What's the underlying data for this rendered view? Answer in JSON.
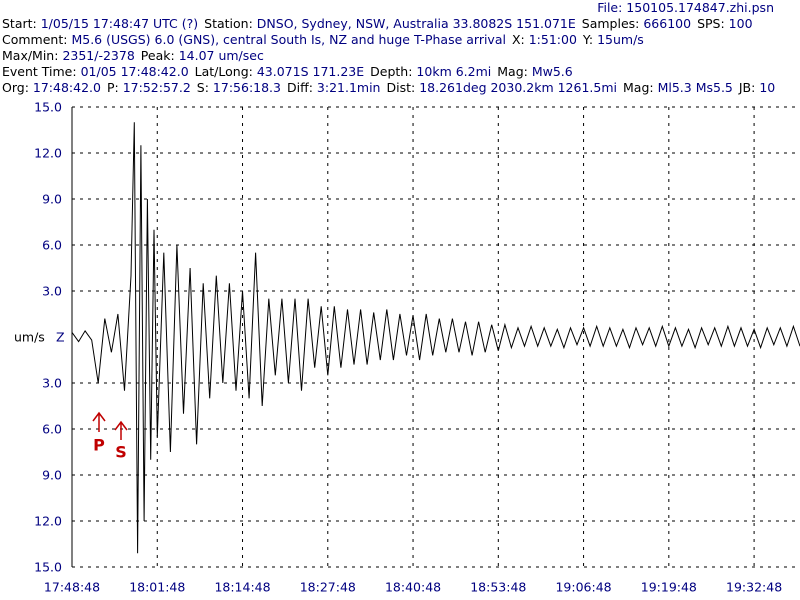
{
  "header": {
    "file": "File: 150105.174847.zhi.psn",
    "lines": [
      [
        {
          "label": "Start:",
          "value": "1/05/15 17:48:47 UTC (?)"
        },
        {
          "label": "Station:",
          "value": "DNSO, Sydney, NSW, Australia 33.8082S 151.071E"
        },
        {
          "label": "Samples:",
          "value": "666100"
        },
        {
          "label": "SPS:",
          "value": "100"
        }
      ],
      [
        {
          "label": "Comment:",
          "value": "M5.6 (USGS) 6.0 (GNS), central South Is, NZ and huge T-Phase arrival"
        },
        {
          "label": "X:",
          "value": "1:51:00"
        },
        {
          "label": "Y:",
          "value": "15um/s"
        }
      ],
      [
        {
          "label": "Max/Min:",
          "value": "2351/-2378"
        },
        {
          "label": "Peak:",
          "value": "14.07 um/sec"
        }
      ],
      [
        {
          "label": "Event Time:",
          "value": "01/05 17:48:42.0"
        },
        {
          "label": "Lat/Long:",
          "value": "43.071S 171.23E"
        },
        {
          "label": "Depth:",
          "value": "10km 6.2mi"
        },
        {
          "label": "Mag:",
          "value": "Mw5.6"
        }
      ],
      [
        {
          "label": "Org:",
          "value": "17:48:42.0"
        },
        {
          "label": "P:",
          "value": "17:52:57.2"
        },
        {
          "label": "S:",
          "value": "17:56:18.3"
        },
        {
          "label": "Diff:",
          "value": "3:21.1min"
        },
        {
          "label": "Dist:",
          "value": "18.261deg 2030.2km 1261.5mi"
        },
        {
          "label": "Mag:",
          "value": "Ml5.3 Ms5.5"
        },
        {
          "label": "JB:",
          "value": "10"
        }
      ]
    ]
  },
  "chart_data": {
    "type": "line",
    "y_label": "um/s",
    "channel": "Z",
    "color": "#000000",
    "grid": true,
    "phases": [
      "P",
      "S"
    ],
    "xlim": [
      "17:48:48",
      "19:39:48"
    ],
    "xticks": [
      "17:48:48",
      "18:01:48",
      "18:14:48",
      "18:27:48",
      "18:40:48",
      "18:53:48",
      "19:06:48",
      "19:19:48",
      "19:32:48"
    ],
    "ylim": [
      -15,
      15
    ],
    "yticks": [
      {
        "value": 15,
        "label": "15.0"
      },
      {
        "value": 12,
        "label": "12.0"
      },
      {
        "value": 9,
        "label": "9.0"
      },
      {
        "value": 6,
        "label": "6.0"
      },
      {
        "value": 3,
        "label": "3.0"
      },
      {
        "value": -3,
        "label": "3.0"
      },
      {
        "value": -6,
        "label": "6.0"
      },
      {
        "value": -9,
        "label": "9.0"
      },
      {
        "value": -12,
        "label": "12.0"
      },
      {
        "value": -15,
        "label": "15.0"
      }
    ],
    "x": [
      "17:48:48",
      "17:49:48",
      "17:50:48",
      "17:51:48",
      "17:52:48",
      "17:53:48",
      "17:54:48",
      "17:55:48",
      "17:56:48",
      "17:57:48",
      "17:58:18",
      "17:58:48",
      "17:59:18",
      "17:59:48",
      "18:00:18",
      "18:00:48",
      "18:01:18",
      "18:01:48",
      "18:02:48",
      "18:03:48",
      "18:04:48",
      "18:05:48",
      "18:06:48",
      "18:07:48",
      "18:08:48",
      "18:09:48",
      "18:10:48",
      "18:11:48",
      "18:12:48",
      "18:13:48",
      "18:14:48",
      "18:15:48",
      "18:16:48",
      "18:17:48",
      "18:18:48",
      "18:19:48",
      "18:20:48",
      "18:21:48",
      "18:22:48",
      "18:23:48",
      "18:24:48",
      "18:25:48",
      "18:26:48",
      "18:27:48",
      "18:28:48",
      "18:29:48",
      "18:30:48",
      "18:31:48",
      "18:32:48",
      "18:33:48",
      "18:34:48",
      "18:35:48",
      "18:36:48",
      "18:37:48",
      "18:38:48",
      "18:39:48",
      "18:40:48",
      "18:41:48",
      "18:42:48",
      "18:43:48",
      "18:44:48",
      "18:45:48",
      "18:46:48",
      "18:47:48",
      "18:48:48",
      "18:49:48",
      "18:50:48",
      "18:51:48",
      "18:52:48",
      "18:53:48",
      "18:54:48",
      "18:55:48",
      "18:56:48",
      "18:57:48",
      "18:58:48",
      "18:59:48",
      "19:00:48",
      "19:01:48",
      "19:02:48",
      "19:03:48",
      "19:04:48",
      "19:05:48",
      "19:06:48",
      "19:07:48",
      "19:08:48",
      "19:09:48",
      "19:10:48",
      "19:11:48",
      "19:12:48",
      "19:13:48",
      "19:14:48",
      "19:15:48",
      "19:16:48",
      "19:17:48",
      "19:18:48",
      "19:19:48",
      "19:20:48",
      "19:21:48",
      "19:22:48",
      "19:23:48",
      "19:24:48",
      "19:25:48",
      "19:26:48",
      "19:27:48",
      "19:28:48",
      "19:29:48",
      "19:30:48",
      "19:31:48",
      "19:32:48",
      "19:33:48",
      "19:34:48",
      "19:35:48",
      "19:36:48",
      "19:37:48",
      "19:38:48",
      "19:39:48"
    ],
    "values": [
      0.3,
      -0.3,
      0.4,
      -0.2,
      -3.0,
      1.2,
      -1.0,
      1.5,
      -3.5,
      4.0,
      14.0,
      -14.1,
      12.5,
      -12.0,
      9.0,
      -8.0,
      7.0,
      -6.5,
      5.5,
      -7.5,
      6.0,
      -5.0,
      4.5,
      -7.0,
      3.5,
      -4.0,
      4.0,
      -3.0,
      3.5,
      -3.5,
      3.0,
      -4.0,
      5.5,
      -4.5,
      2.5,
      -2.5,
      2.5,
      -3.0,
      2.5,
      -3.5,
      2.5,
      -2.0,
      2.0,
      -2.5,
      2.0,
      -2.0,
      1.8,
      -1.8,
      1.8,
      -1.8,
      1.6,
      -1.5,
      1.8,
      -1.5,
      1.5,
      -1.2,
      1.4,
      -1.5,
      1.5,
      -1.2,
      1.2,
      -1.0,
      1.2,
      -1.0,
      1.0,
      -1.2,
      1.0,
      -1.0,
      0.8,
      -0.9,
      0.8,
      -0.7,
      0.6,
      -0.6,
      0.7,
      -0.6,
      0.6,
      -0.6,
      0.5,
      -0.7,
      0.6,
      -0.5,
      0.6,
      -0.6,
      0.7,
      -0.6,
      0.6,
      -0.6,
      0.5,
      -0.7,
      0.6,
      -0.5,
      0.6,
      -0.6,
      0.7,
      -0.6,
      0.6,
      -0.6,
      0.5,
      -0.7,
      0.6,
      -0.5,
      0.6,
      -0.6,
      0.7,
      -0.6,
      0.6,
      -0.6,
      0.5,
      -0.7,
      0.6,
      -0.5,
      0.6,
      -0.6,
      0.7,
      -0.6
    ]
  }
}
